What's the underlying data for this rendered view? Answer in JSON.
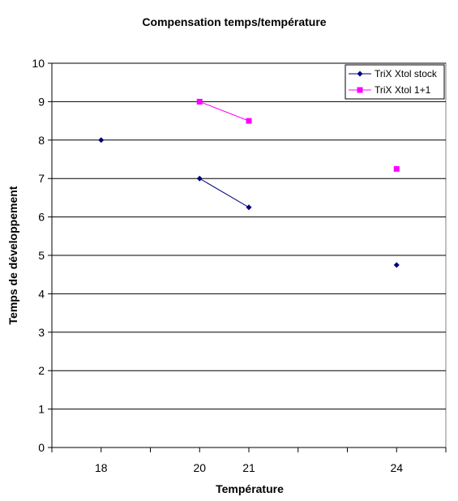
{
  "chart_data": {
    "type": "line",
    "title": "Compensation temps/température",
    "xlabel": "Température",
    "ylabel": "Temps de développement",
    "xlim": [
      17,
      25
    ],
    "ylim": [
      0,
      10
    ],
    "yticks": [
      0,
      1,
      2,
      3,
      4,
      5,
      6,
      7,
      8,
      9,
      10
    ],
    "xtick_labels": [
      18,
      20,
      21,
      24
    ],
    "grid": "horizontal",
    "legend_position": "top-right",
    "series": [
      {
        "name": "TriX Xtol stock",
        "color": "#000080",
        "marker": "diamond",
        "points": [
          [
            18,
            8
          ],
          [
            20,
            7
          ],
          [
            21,
            6.25
          ],
          [
            24,
            4.75
          ]
        ],
        "segments": [
          [
            1,
            2
          ]
        ]
      },
      {
        "name": "TriX Xtol 1+1",
        "color": "#FF00FF",
        "marker": "square",
        "points": [
          [
            20,
            9
          ],
          [
            21,
            8.5
          ],
          [
            24,
            7.25
          ]
        ],
        "segments": [
          [
            0,
            1
          ]
        ]
      }
    ]
  }
}
